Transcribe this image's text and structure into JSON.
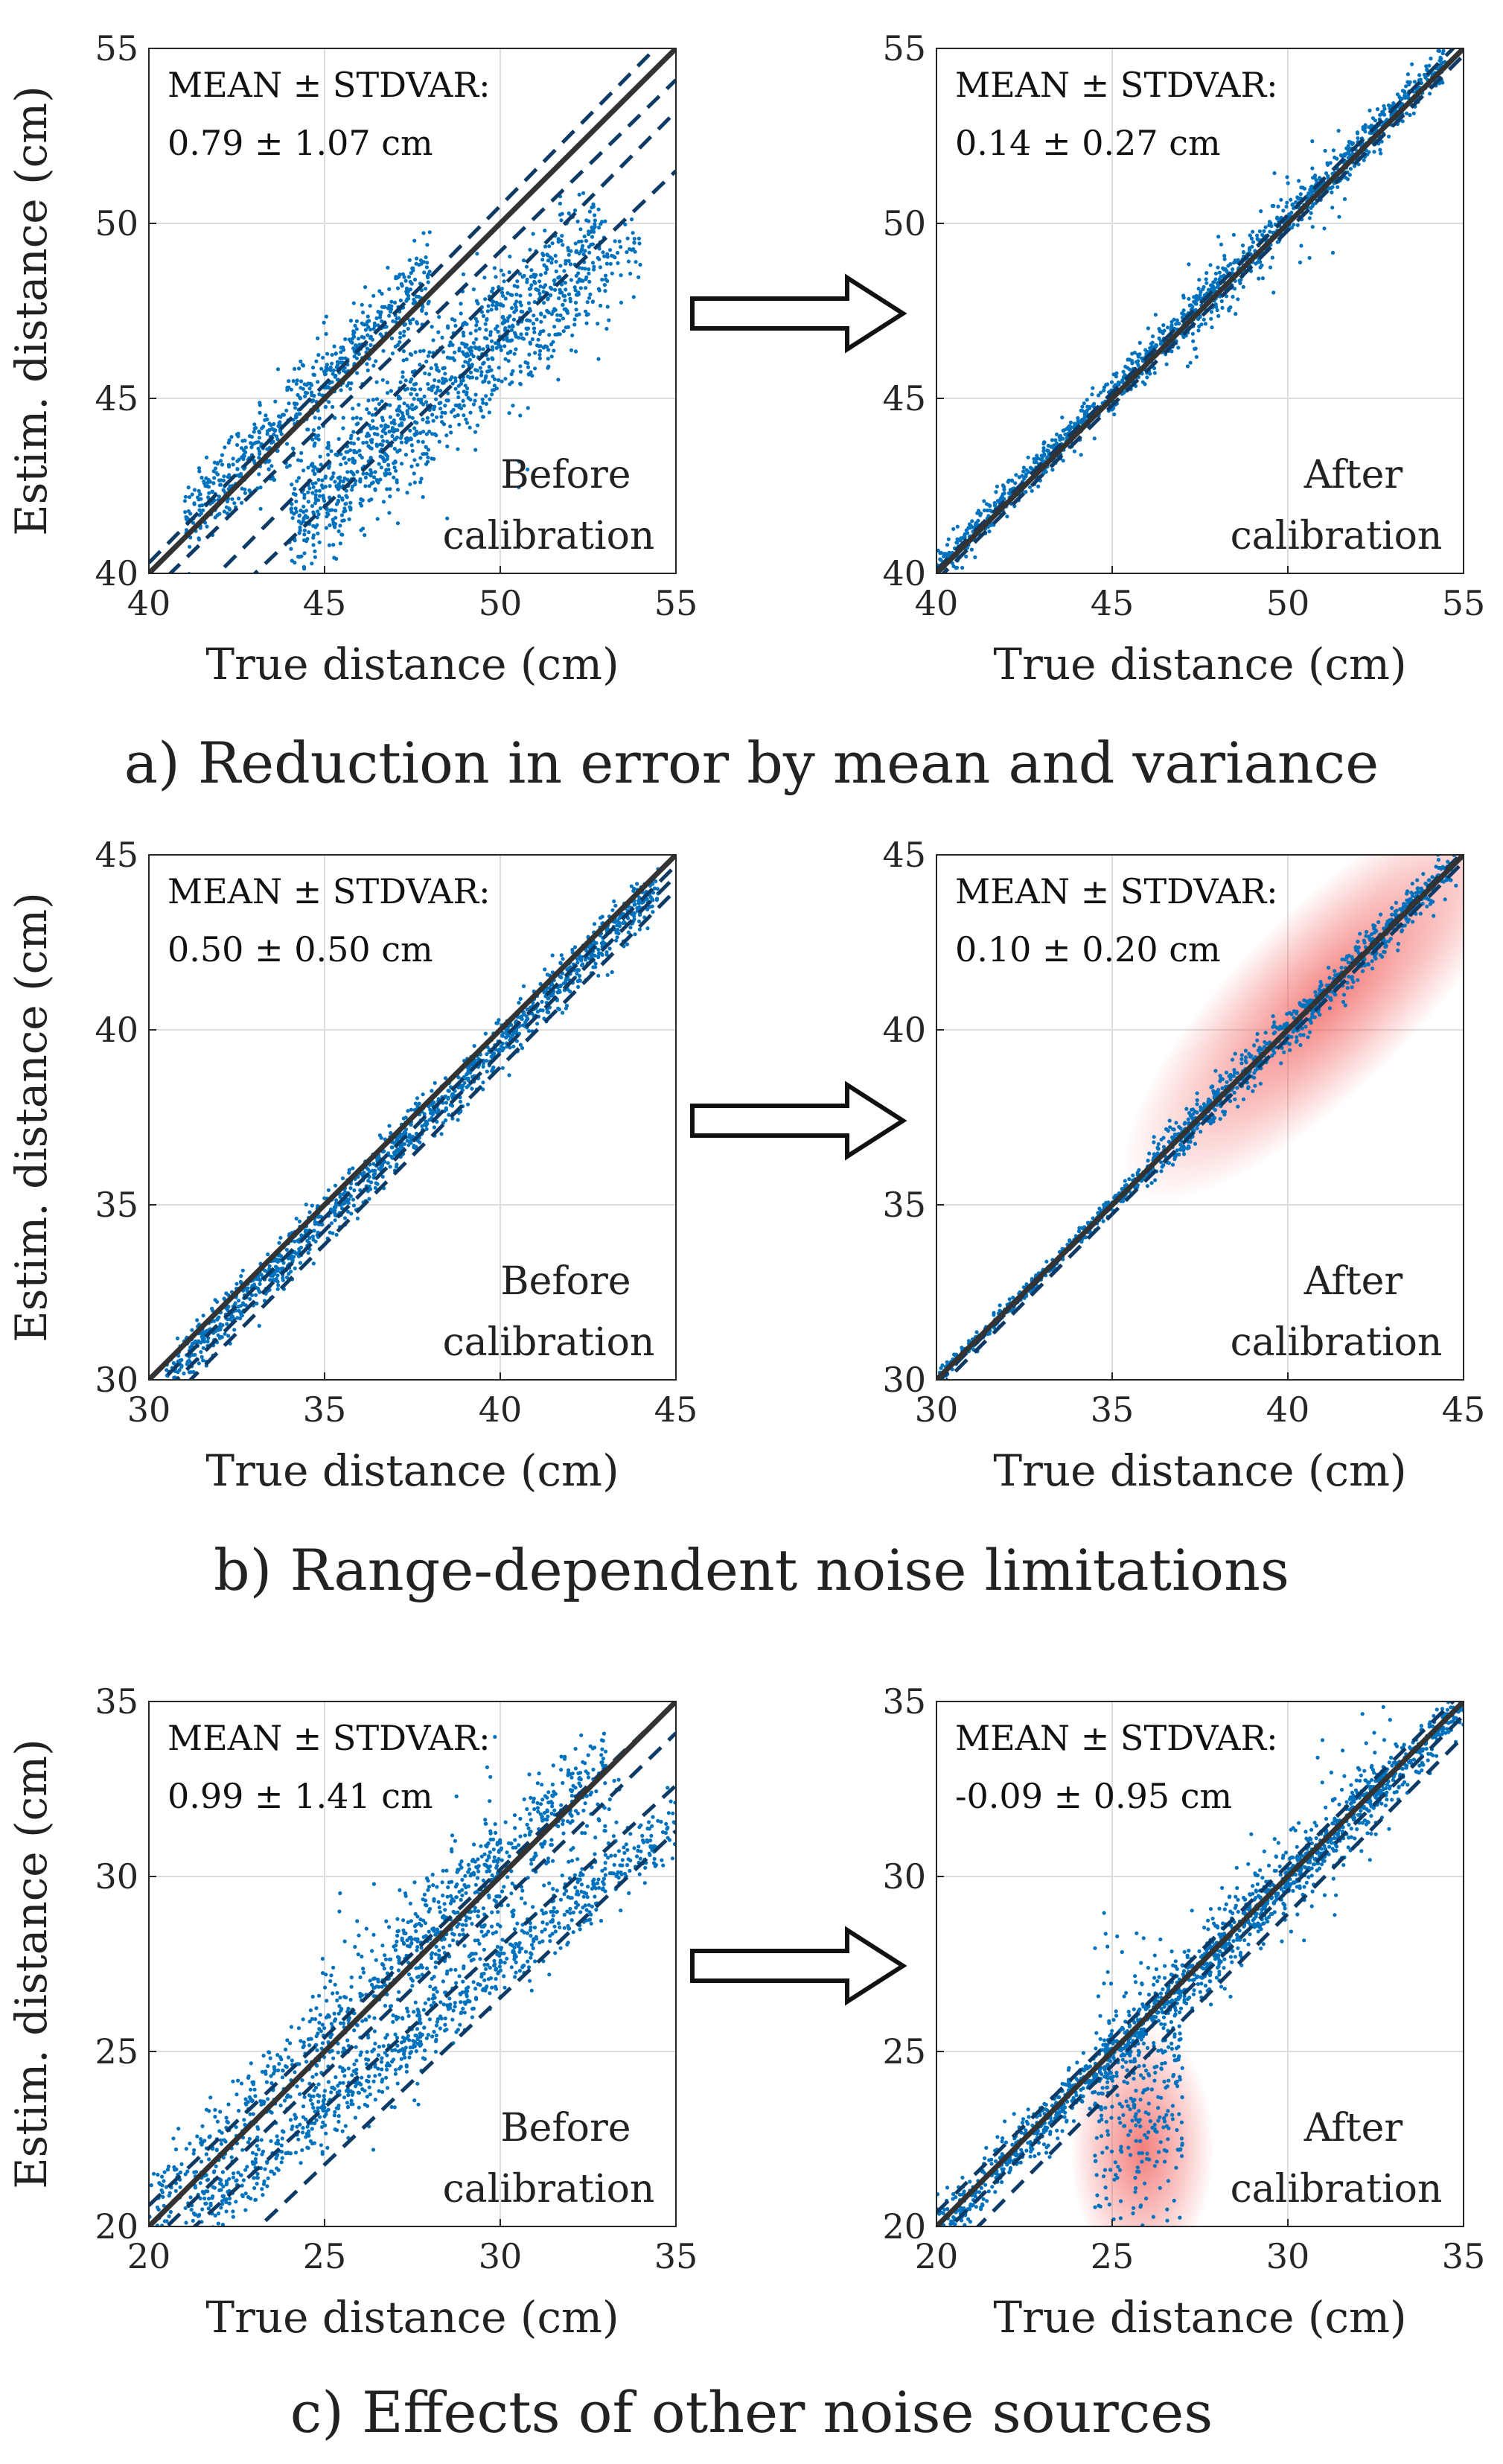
{
  "figure": {
    "captions": [
      "a) Reduction in error by mean and variance",
      "b) Range-dependent noise limitations",
      "c) Effects of other noise sources"
    ],
    "arrow_icon": "right-arrow-icon"
  },
  "chart_data": [
    {
      "type": "scatter",
      "id": "a-before",
      "row": "a",
      "stage": "before",
      "xlabel": "True distance (cm)",
      "ylabel": "Estim. distance (cm)",
      "xlim": [
        40,
        55
      ],
      "ylim": [
        40,
        55
      ],
      "xticks": [
        40,
        45,
        50,
        55
      ],
      "yticks": [
        40,
        45,
        50,
        55
      ],
      "grid": true,
      "stat_title": "MEAN ± STDVAR:",
      "stat_value": "0.79 ± 1.07 cm",
      "label_line1": "Before",
      "label_line2": "calibration",
      "ref_line": [
        [
          40,
          40
        ],
        [
          55,
          55
        ]
      ],
      "dashed_lines": [
        [
          [
            40,
            40.3
          ],
          [
            55,
            55.6
          ]
        ],
        [
          [
            40,
            39.4
          ],
          [
            55,
            54.1
          ]
        ],
        [
          [
            40,
            38.0
          ],
          [
            55,
            53.2
          ]
        ],
        [
          [
            40,
            37.1
          ],
          [
            55,
            51.5
          ]
        ]
      ],
      "clusters": [
        {
          "x0": 41,
          "x1": 48,
          "slope": 1.0,
          "intercept": 0.5,
          "spread": 0.6,
          "n": 650
        },
        {
          "x0": 44,
          "x1": 53,
          "slope": 0.92,
          "intercept": 1.2,
          "spread": 0.8,
          "n": 700
        },
        {
          "x0": 44,
          "x1": 54,
          "slope": 0.85,
          "intercept": 3.5,
          "spread": 0.7,
          "n": 500
        },
        {
          "x0": 47,
          "x1": 51,
          "slope": 0.6,
          "intercept": 16,
          "spread": 1.5,
          "n": 60
        }
      ]
    },
    {
      "type": "scatter",
      "id": "a-after",
      "row": "a",
      "stage": "after",
      "xlabel": "True distance (cm)",
      "ylabel": "",
      "xlim": [
        40,
        55
      ],
      "ylim": [
        40,
        55
      ],
      "xticks": [
        40,
        45,
        50,
        55
      ],
      "yticks": [
        40,
        45,
        50,
        55
      ],
      "grid": true,
      "stat_title": "MEAN ± STDVAR:",
      "stat_value": "0.14 ± 0.27 cm",
      "label_line1": "After",
      "label_line2": "calibration",
      "ref_line": [
        [
          40,
          40
        ],
        [
          55,
          55
        ]
      ],
      "dashed_lines": [
        [
          [
            40,
            40.1
          ],
          [
            55,
            55.3
          ]
        ],
        [
          [
            40,
            39.8
          ],
          [
            55,
            54.8
          ]
        ]
      ],
      "clusters": [
        {
          "x0": 40,
          "x1": 54.5,
          "slope": 1.0,
          "intercept": 0.14,
          "spread": 0.27,
          "n": 1300
        },
        {
          "x0": 47,
          "x1": 52,
          "slope": 1.0,
          "intercept": 0.0,
          "spread": 0.7,
          "n": 120
        }
      ]
    },
    {
      "type": "scatter",
      "id": "b-before",
      "row": "b",
      "stage": "before",
      "xlabel": "True distance (cm)",
      "ylabel": "Estim. distance (cm)",
      "xlim": [
        30,
        45
      ],
      "ylim": [
        30,
        45
      ],
      "xticks": [
        30,
        35,
        40,
        45
      ],
      "yticks": [
        30,
        35,
        40,
        45
      ],
      "grid": true,
      "stat_title": "MEAN ± STDVAR:",
      "stat_value": "0.50 ± 0.50 cm",
      "label_line1": "Before",
      "label_line2": "calibration",
      "ref_line": [
        [
          30,
          30
        ],
        [
          45,
          45
        ]
      ],
      "dashed_lines": [
        [
          [
            30,
            29.6
          ],
          [
            45,
            44.7
          ]
        ],
        [
          [
            30,
            29.2
          ],
          [
            45,
            44.4
          ]
        ],
        [
          [
            30,
            28.8
          ],
          [
            45,
            44.0
          ]
        ]
      ],
      "clusters": [
        {
          "x0": 30.5,
          "x1": 44.5,
          "slope": 1.0,
          "intercept": -0.4,
          "spread": 0.35,
          "n": 1300
        }
      ]
    },
    {
      "type": "scatter",
      "id": "b-after",
      "row": "b",
      "stage": "after",
      "xlabel": "True distance (cm)",
      "ylabel": "",
      "xlim": [
        30,
        45
      ],
      "ylim": [
        30,
        45
      ],
      "xticks": [
        30,
        35,
        40,
        45
      ],
      "yticks": [
        30,
        35,
        40,
        45
      ],
      "grid": true,
      "stat_title": "MEAN ± STDVAR:",
      "stat_value": "0.10 ± 0.20 cm",
      "label_line1": "After",
      "label_line2": "calibration",
      "highlight": {
        "type": "diagonal",
        "x_from": 36,
        "x_to": 45
      },
      "ref_line": [
        [
          30,
          30
        ],
        [
          45,
          45
        ]
      ],
      "dashed_lines": [
        [
          [
            30,
            29.9
          ],
          [
            45,
            45.1
          ]
        ],
        [
          [
            30,
            29.7
          ],
          [
            45,
            44.8
          ]
        ]
      ],
      "clusters": [
        {
          "x0": 30,
          "x1": 36,
          "slope": 1.0,
          "intercept": 0.0,
          "spread": 0.12,
          "n": 350
        },
        {
          "x0": 36,
          "x1": 44.8,
          "slope": 1.0,
          "intercept": 0.0,
          "spread": 0.3,
          "n": 800
        }
      ]
    },
    {
      "type": "scatter",
      "id": "c-before",
      "row": "c",
      "stage": "before",
      "xlabel": "True distance (cm)",
      "ylabel": "Estim. distance (cm)",
      "xlim": [
        20,
        35
      ],
      "ylim": [
        20,
        35
      ],
      "xticks": [
        20,
        25,
        30,
        35
      ],
      "yticks": [
        20,
        25,
        30,
        35
      ],
      "grid": true,
      "stat_title": "MEAN ± STDVAR:",
      "stat_value": "0.99 ± 1.41 cm",
      "label_line1": "Before",
      "label_line2": "calibration",
      "ref_line": [
        [
          20,
          20
        ],
        [
          35,
          35
        ]
      ],
      "dashed_lines": [
        [
          [
            20,
            20.6
          ],
          [
            35,
            35.0
          ]
        ],
        [
          [
            20,
            19.5
          ],
          [
            35,
            34.1
          ]
        ],
        [
          [
            20,
            18.8
          ],
          [
            35,
            32.6
          ]
        ],
        [
          [
            20,
            17.0
          ],
          [
            35,
            31.3
          ]
        ]
      ],
      "clusters": [
        {
          "x0": 20,
          "x1": 33,
          "slope": 1.0,
          "intercept": 0.5,
          "spread": 0.6,
          "n": 700
        },
        {
          "x0": 21,
          "x1": 35,
          "slope": 0.83,
          "intercept": 2.5,
          "spread": 0.5,
          "n": 800
        },
        {
          "x0": 24.5,
          "x1": 30,
          "slope": 1.0,
          "intercept": 0.0,
          "spread": 1.5,
          "n": 250
        },
        {
          "x0": 28,
          "x1": 33.5,
          "slope": 0.8,
          "intercept": 5.5,
          "spread": 1.0,
          "n": 150
        }
      ]
    },
    {
      "type": "scatter",
      "id": "c-after",
      "row": "c",
      "stage": "after",
      "xlabel": "True distance (cm)",
      "ylabel": "",
      "xlim": [
        20,
        35
      ],
      "ylim": [
        20,
        35
      ],
      "xticks": [
        20,
        25,
        30,
        35
      ],
      "yticks": [
        20,
        25,
        30,
        35
      ],
      "grid": true,
      "stat_title": "MEAN ± STDVAR:",
      "stat_value": "-0.09 ± 0.95 cm",
      "label_line1": "After",
      "label_line2": "calibration",
      "highlight": {
        "type": "vertical",
        "x_from": 24.2,
        "x_to": 27.5
      },
      "ref_line": [
        [
          20,
          20
        ],
        [
          35,
          35
        ]
      ],
      "dashed_lines": [
        [
          [
            20,
            20.4
          ],
          [
            35,
            35.3
          ]
        ],
        [
          [
            20,
            19.6
          ],
          [
            35,
            34.6
          ]
        ],
        [
          [
            20,
            18.8
          ],
          [
            35,
            34.0
          ]
        ]
      ],
      "clusters": [
        {
          "x0": 20,
          "x1": 35,
          "slope": 1.0,
          "intercept": -0.09,
          "spread": 0.35,
          "n": 1400
        },
        {
          "x0": 27,
          "x1": 33,
          "slope": 1.0,
          "intercept": 0.0,
          "spread": 0.9,
          "n": 250
        },
        {
          "x0": 24.5,
          "x1": 27,
          "slope": 0.0,
          "intercept": 24.0,
          "spread": 2.0,
          "n": 350
        }
      ]
    }
  ]
}
